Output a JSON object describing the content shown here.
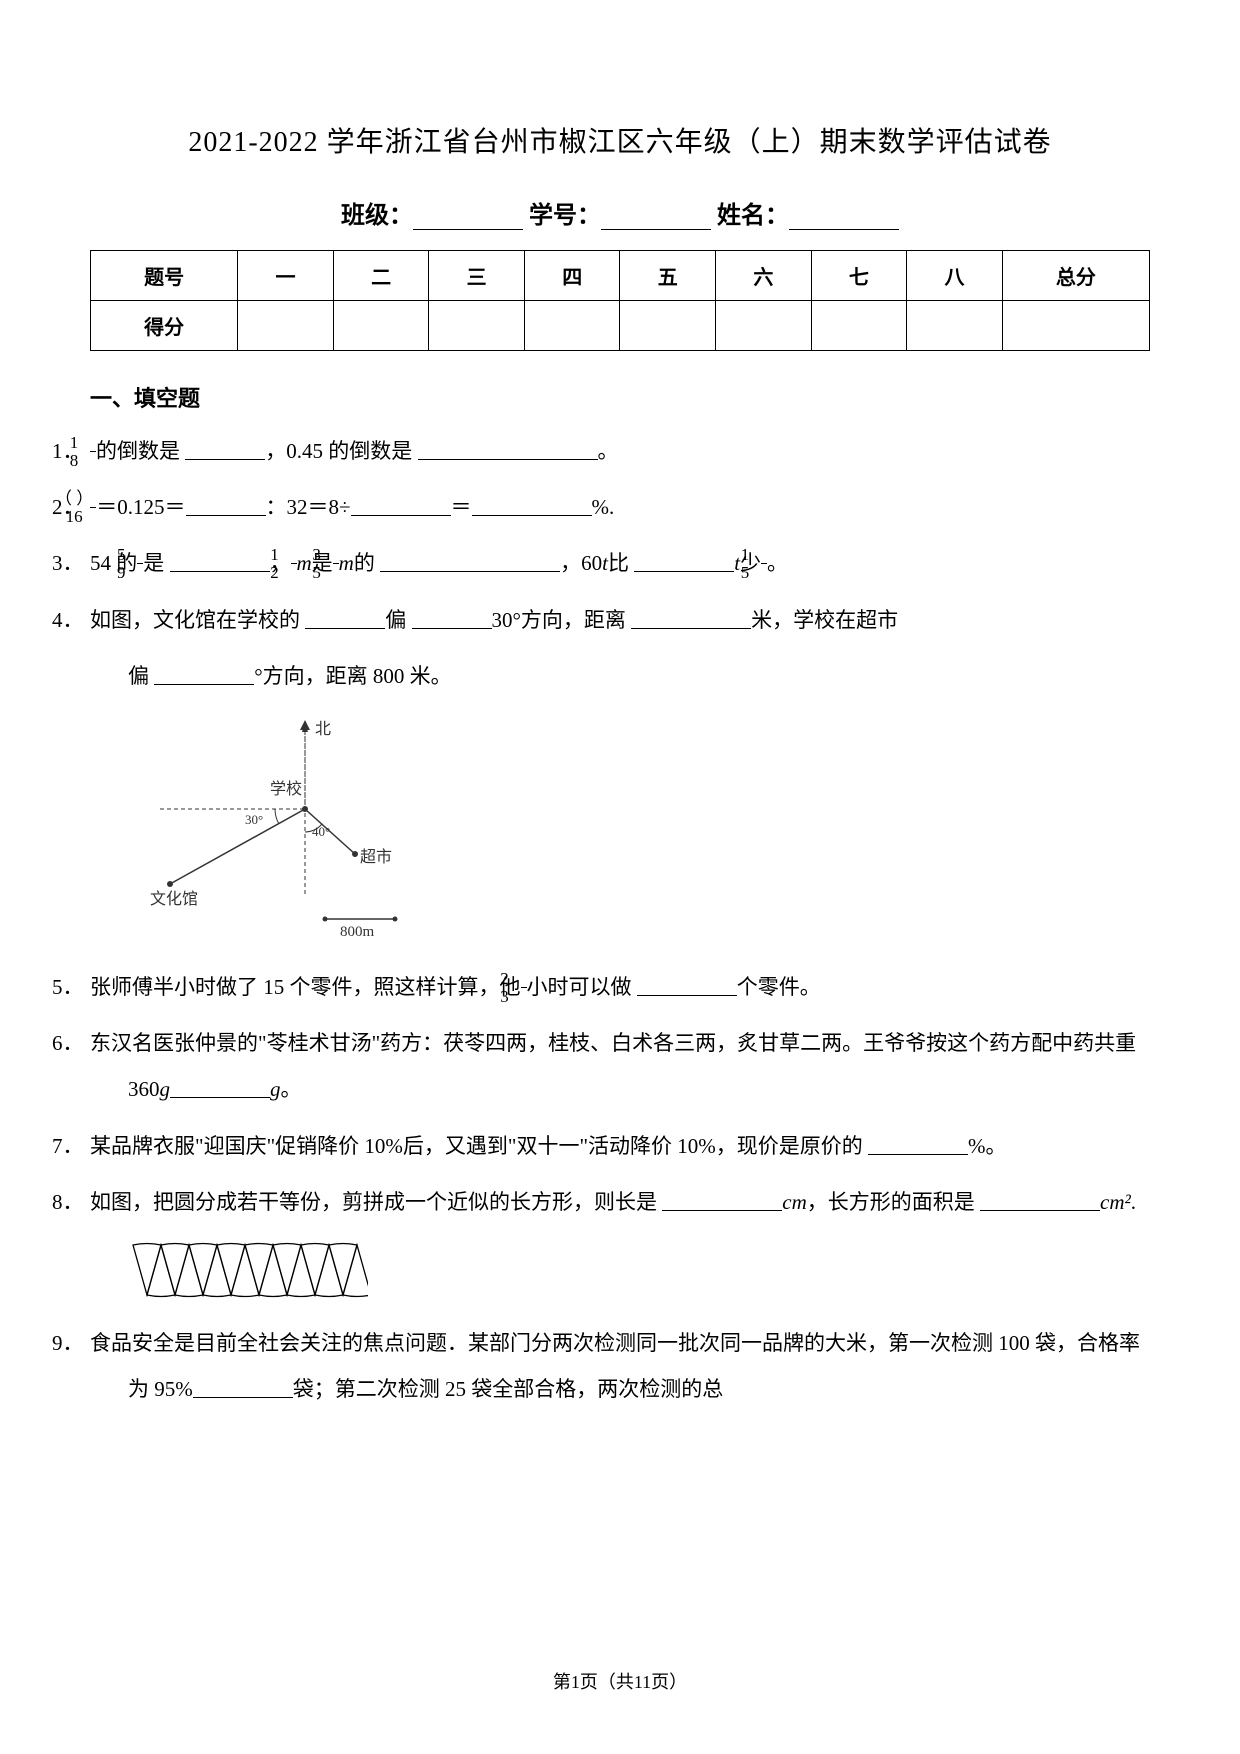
{
  "title": "2021-2022 学年浙江省台州市椒江区六年级（上）期末数学评估试卷",
  "header_labels": {
    "class": "班级：",
    "id": "学号：",
    "name": "姓名："
  },
  "score_table": {
    "row1": [
      "题号",
      "一",
      "二",
      "三",
      "四",
      "五",
      "六",
      "七",
      "八",
      "总分"
    ],
    "row2_label": "得分"
  },
  "section1_title": "一、填空题",
  "q1": {
    "num": "1．",
    "p1": "的倒数是",
    "p2": "，0.45 的倒数是",
    "p3": "。",
    "frac1_num": "1",
    "frac1_den": "8"
  },
  "q2": {
    "num": "2．",
    "frac_num": "（ ）",
    "frac_den": "16",
    "p1": "＝0.125＝",
    "p2": "：32＝8÷",
    "p3": "＝",
    "p4": "%."
  },
  "q3": {
    "num": "3．",
    "p1": "54 的",
    "frac1_num": "5",
    "frac1_den": "9",
    "p2": "是",
    "p3": "，",
    "frac2_num": "1",
    "frac2_den": "2",
    "m1": "m",
    "p4": "是",
    "frac3_num": "3",
    "frac3_den": "5",
    "m2": "m",
    "p5": "的",
    "p6": "，60",
    "t1": "t",
    "p7": "比",
    "t2": "t",
    "p8": "少",
    "frac4_num": "1",
    "frac4_den": "5",
    "p9": "。"
  },
  "q4": {
    "num": "4．",
    "p1": "如图，文化馆在学校的",
    "p2": "偏",
    "p3": "30°方向，距离",
    "p4": "米，学校在超市",
    "p5": "偏",
    "p6": "°方向，距离 800 米。"
  },
  "figure1": {
    "north": "北",
    "school": "学校",
    "market": "超市",
    "culture": "文化馆",
    "angle1": "30°",
    "angle2": "40°",
    "scale": "800m",
    "colors": {
      "line": "#333333",
      "text": "#333333"
    }
  },
  "q5": {
    "num": "5．",
    "p1": "张师傅半小时做了 15 个零件，照这样计算，他",
    "frac_num": "2",
    "frac_den": "3",
    "p2": "小时可以做",
    "p3": "个零件。"
  },
  "q6": {
    "num": "6．",
    "p1": "东汉名医张仲景的\"苓桂术甘汤\"药方：茯苓四两，桂枝、白术各三两，炙甘草二两。王爷爷按这个药方配中药共重 360",
    "g1": "g",
    "g2": "g",
    "p2": "。"
  },
  "q7": {
    "num": "7．",
    "p1": "某品牌衣服\"迎国庆\"促销降价 10%后，又遇到\"双十一\"活动降价 10%，现价是原价的",
    "p2": "%。"
  },
  "q8": {
    "num": "8．",
    "p1": "如图，把圆分成若干等份，剪拼成一个近似的长方形，则长是",
    "cm": "cm",
    "p2": "，长方形的面积是",
    "cm2": "cm²",
    "p3": "."
  },
  "figure2": {
    "segments": 8,
    "colors": {
      "stroke": "#000000",
      "fill": "#ffffff"
    }
  },
  "q9": {
    "num": "9．",
    "p1": "食品安全是目前全社会关注的焦点问题．某部门分两次检测同一批次同一品牌的大米，第一次检测 100 袋，合格率为 95%",
    "p2": "袋；第二次检测 25 袋全部合格，两次检测的总"
  },
  "footer": "第1页（共11页）"
}
